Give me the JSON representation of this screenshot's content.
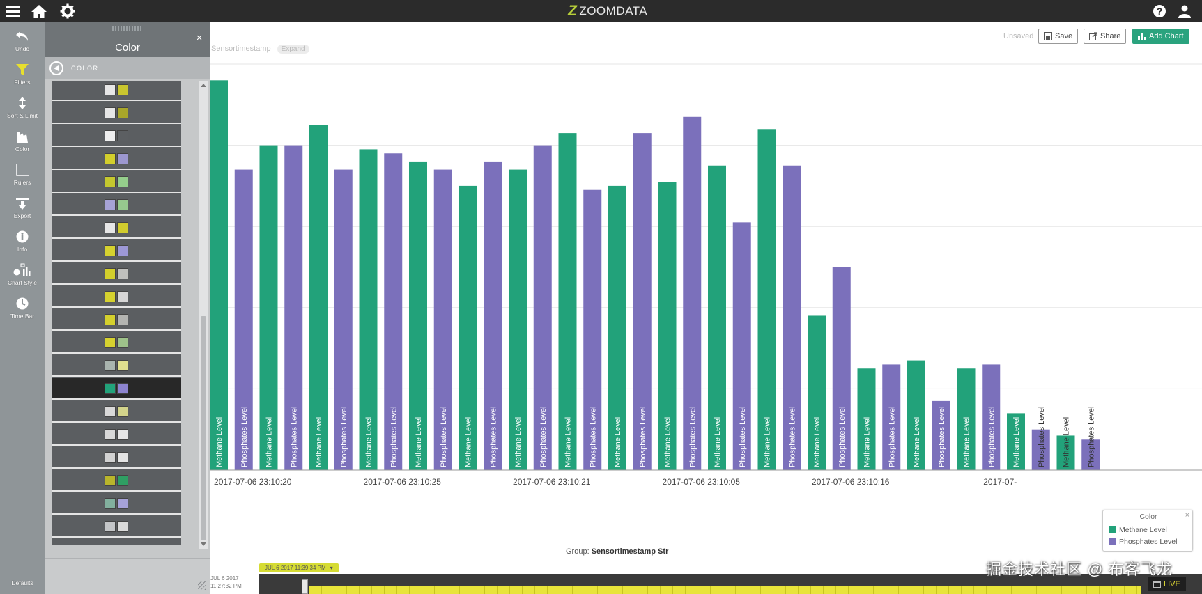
{
  "app": {
    "brand": "ZOOMDATA",
    "watermark": "掘金技术社区 @ 布客飞龙"
  },
  "topbar": {
    "menu_icon": "hamburger-icon",
    "home_icon": "home-icon",
    "settings_icon": "gear-icon",
    "help_icon": "help-icon",
    "user_icon": "user-icon"
  },
  "nav": {
    "items": [
      {
        "label": "Undo",
        "icon": "undo-icon"
      },
      {
        "label": "Filters",
        "icon": "filter-icon"
      },
      {
        "label": "Sort & Limit",
        "icon": "sort-icon"
      },
      {
        "label": "Color",
        "icon": "color-icon"
      },
      {
        "label": "Rulers",
        "icon": "ruler-icon"
      },
      {
        "label": "Export",
        "icon": "export-icon"
      },
      {
        "label": "Info",
        "icon": "info-icon"
      },
      {
        "label": "Chart Style",
        "icon": "chart-style-icon"
      },
      {
        "label": "Time Bar",
        "icon": "clock-icon"
      }
    ],
    "defaults_label": "Defaults"
  },
  "panel": {
    "title": "Color",
    "sub_label": "COLOR",
    "close": "×",
    "palettes": [
      [
        "#e6e6e6",
        "#c9c62e"
      ],
      [
        "#e6e6e6",
        "#a8a62a"
      ],
      [
        "#eeeeee",
        "#5c5f62"
      ],
      [
        "#d2ce2c",
        "#9c97cf"
      ],
      [
        "#c5c82e",
        "#95ce8c"
      ],
      [
        "#a6a2d6",
        "#96c88e"
      ],
      [
        "#e6e6e6",
        "#d1cc2e"
      ],
      [
        "#d6d22f",
        "#9d98d6"
      ],
      [
        "#d3cf2c",
        "#bfc0bd"
      ],
      [
        "#d6d22f",
        "#d6d6d6"
      ],
      [
        "#d4d02d",
        "#b3b4b1"
      ],
      [
        "#d6d22f",
        "#9ec28a"
      ],
      [
        "#a9b4ae",
        "#e0df8f"
      ],
      [
        "#22a27a",
        "#8d84cf"
      ],
      [
        "#d8d8d8",
        "#d3d48b"
      ],
      [
        "#d8d8d8",
        "#e6e6e6"
      ],
      [
        "#d2d2d2",
        "#e4e4e4"
      ],
      [
        "#b9b52b",
        "#2f9e63"
      ],
      [
        "#82b09e",
        "#a6a2d8"
      ],
      [
        "#c4c6c8",
        "#dadada"
      ]
    ],
    "selected_palette": 13
  },
  "toolbar": {
    "status": "Unsaved",
    "save_label": "Save",
    "share_label": "Share",
    "add_chart_label": "Add Chart"
  },
  "breadcrumb": {
    "field": "Sensortimestamp",
    "expand_label": "Expand"
  },
  "chart_data": {
    "type": "bar",
    "title": "",
    "colors": {
      "Methane Level": "#22a27a",
      "Phosphates Level": "#7b70bb"
    },
    "ylim": [
      0,
      100
    ],
    "grid": true,
    "group_label": "Group:",
    "group_field": "Sensortimestamp Str",
    "x_tick_labels": [
      "2017-07-06 23:10:20",
      "2017-07-06 23:10:25",
      "2017-07-06 23:10:21",
      "2017-07-06 23:10:05",
      "2017-07-06 23:10:16",
      "2017-07-"
    ],
    "bars": [
      {
        "series": "Methane Level",
        "value": 96
      },
      {
        "series": "Phosphates Level",
        "value": 74
      },
      {
        "series": "Methane Level",
        "value": 80
      },
      {
        "series": "Phosphates Level",
        "value": 80
      },
      {
        "series": "Methane Level",
        "value": 85
      },
      {
        "series": "Phosphates Level",
        "value": 74
      },
      {
        "series": "Methane Level",
        "value": 79
      },
      {
        "series": "Phosphates Level",
        "value": 78
      },
      {
        "series": "Methane Level",
        "value": 76
      },
      {
        "series": "Phosphates Level",
        "value": 74
      },
      {
        "series": "Methane Level",
        "value": 70
      },
      {
        "series": "Phosphates Level",
        "value": 76
      },
      {
        "series": "Methane Level",
        "value": 74
      },
      {
        "series": "Phosphates Level",
        "value": 80
      },
      {
        "series": "Methane Level",
        "value": 83
      },
      {
        "series": "Phosphates Level",
        "value": 69
      },
      {
        "series": "Methane Level",
        "value": 70
      },
      {
        "series": "Phosphates Level",
        "value": 83
      },
      {
        "series": "Methane Level",
        "value": 71
      },
      {
        "series": "Phosphates Level",
        "value": 87
      },
      {
        "series": "Methane Level",
        "value": 75
      },
      {
        "series": "Phosphates Level",
        "value": 61
      },
      {
        "series": "Methane Level",
        "value": 84
      },
      {
        "series": "Phosphates Level",
        "value": 75
      },
      {
        "series": "Methane Level",
        "value": 38
      },
      {
        "series": "Phosphates Level",
        "value": 50
      },
      {
        "series": "Methane Level",
        "value": 25
      },
      {
        "series": "Phosphates Level",
        "value": 26
      },
      {
        "series": "Methane Level",
        "value": 27
      },
      {
        "series": "Phosphates Level",
        "value": 17
      },
      {
        "series": "Methane Level",
        "value": 25
      },
      {
        "series": "Phosphates Level",
        "value": 26
      },
      {
        "series": "Methane Level",
        "value": 14
      },
      {
        "series": "Phosphates Level",
        "value": 10
      },
      {
        "series": "Methane Level",
        "value": 8.5
      },
      {
        "series": "Phosphates Level",
        "value": 7.5
      }
    ],
    "legend": {
      "title": "Color",
      "entries": [
        "Methane Level",
        "Phosphates Level"
      ],
      "close": "×"
    }
  },
  "timebar": {
    "date_line1": "JUL 6 2017",
    "date_line2": "11:27:32 PM",
    "marker_label": "JUL 6 2017 11:39:34 PM",
    "live_label": "LIVE"
  }
}
